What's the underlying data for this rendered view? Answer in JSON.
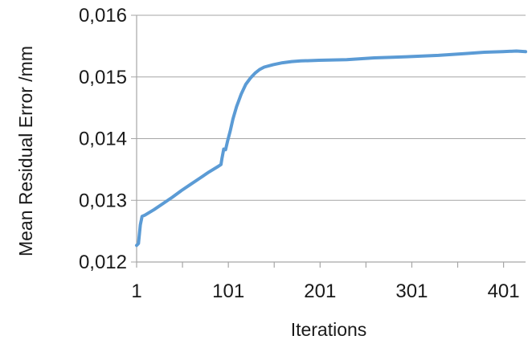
{
  "chart_data": {
    "type": "line",
    "title": "",
    "xlabel": "Iterations",
    "ylabel": "Mean Residual Error /mm",
    "xlim": [
      1,
      425
    ],
    "ylim": [
      0.012,
      0.016
    ],
    "x_ticks": [
      1,
      101,
      201,
      301,
      401
    ],
    "x_tick_labels": [
      "1",
      "101",
      "201",
      "301",
      "401"
    ],
    "x_minor_ticks": [
      51,
      151,
      251,
      351
    ],
    "y_ticks": [
      0.012,
      0.013,
      0.014,
      0.015,
      0.016
    ],
    "y_tick_labels": [
      "0,012",
      "0,013",
      "0,014",
      "0,015",
      "0,016"
    ],
    "grid": "horizontal",
    "legend": "none",
    "series": [
      {
        "color": "#5b9bd5",
        "x": [
          1,
          3,
          5,
          7,
          10,
          20,
          30,
          40,
          50,
          60,
          70,
          80,
          90,
          93,
          94,
          96,
          97,
          98,
          100,
          103,
          106,
          110,
          115,
          120,
          125,
          130,
          135,
          140,
          150,
          160,
          170,
          180,
          200,
          230,
          260,
          280,
          300,
          330,
          360,
          380,
          400,
          415,
          425
        ],
        "y": [
          0.01227,
          0.0123,
          0.0126,
          0.01274,
          0.01276,
          0.01285,
          0.01295,
          0.01305,
          0.01316,
          0.01326,
          0.01336,
          0.01346,
          0.01355,
          0.01358,
          0.01368,
          0.01383,
          0.01382,
          0.01382,
          0.01395,
          0.01412,
          0.01432,
          0.01452,
          0.01472,
          0.01488,
          0.01498,
          0.01506,
          0.01512,
          0.01516,
          0.0152,
          0.01523,
          0.01525,
          0.01526,
          0.01527,
          0.01528,
          0.01531,
          0.01532,
          0.01533,
          0.01535,
          0.01538,
          0.0154,
          0.01541,
          0.01542,
          0.01541
        ]
      }
    ],
    "axis_color": "#a6a6a6",
    "grid_color": "#a6a6a6"
  }
}
